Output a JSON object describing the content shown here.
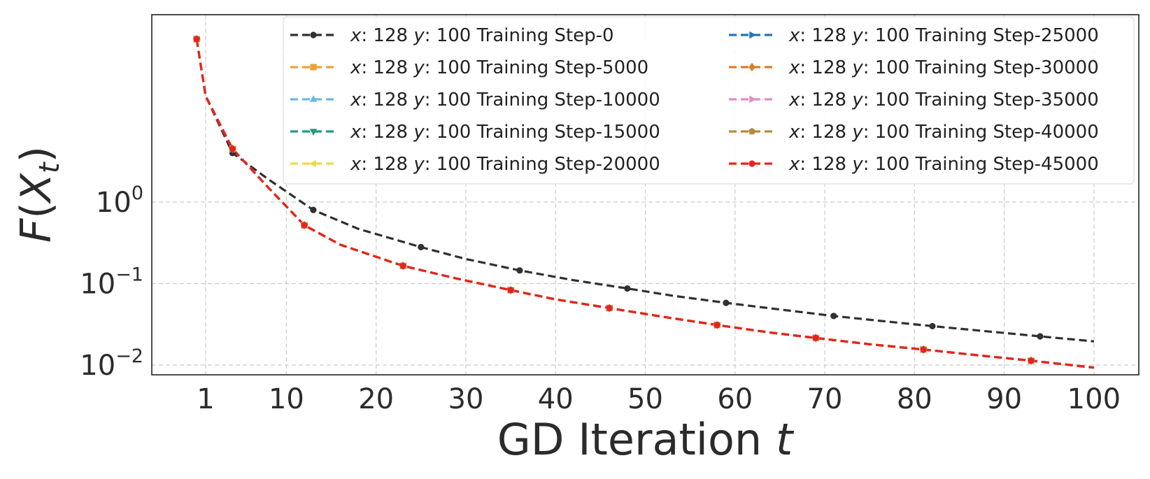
{
  "chart_data": {
    "type": "line",
    "title": "",
    "xlabel": "GD Iteration t",
    "xlabel_text": "GD Iteration ",
    "xlabel_var": "t",
    "ylabel": "F(X_t)",
    "y_scale": "log",
    "xlim": [
      -5,
      105
    ],
    "ylim_log10": [
      -2.12,
      2.3
    ],
    "x_ticks": [
      1,
      10,
      20,
      30,
      40,
      50,
      60,
      70,
      80,
      90,
      100
    ],
    "y_ticks": [
      {
        "exp": -2,
        "base": "10",
        "sup": "−2"
      },
      {
        "exp": -1,
        "base": "10",
        "sup": "−1"
      },
      {
        "exp": 0,
        "base": "10",
        "sup": "0"
      }
    ],
    "grid": true,
    "legend_position": "top-right",
    "legend_columns": 2,
    "legend_label_parts": {
      "x": "x",
      "x_val": ": 128 ",
      "y": "y",
      "y_val": ": 100 Training Step-"
    },
    "series": [
      {
        "name": "x: 128 y: 100 Training Step-0",
        "step": "0",
        "color": "#303030",
        "marker": "circle",
        "curve": "initial"
      },
      {
        "name": "x: 128 y: 100 Training Step-5000",
        "step": "5000",
        "color": "#E8A33C",
        "marker": "square",
        "curve": "trained"
      },
      {
        "name": "x: 128 y: 100 Training Step-10000",
        "step": "10000",
        "color": "#6CB8E6",
        "marker": "triangle-up",
        "curve": "trained"
      },
      {
        "name": "x: 128 y: 100 Training Step-15000",
        "step": "15000",
        "color": "#1F9E79",
        "marker": "triangle-down",
        "curve": "trained"
      },
      {
        "name": "x: 128 y: 100 Training Step-20000",
        "step": "20000",
        "color": "#EDD94C",
        "marker": "triangle-left",
        "curve": "trained"
      },
      {
        "name": "x: 128 y: 100 Training Step-25000",
        "step": "25000",
        "color": "#1F77B4",
        "marker": "triangle-right",
        "curve": "trained"
      },
      {
        "name": "x: 128 y: 100 Training Step-30000",
        "step": "30000",
        "color": "#E07B2A",
        "marker": "diamond",
        "curve": "trained"
      },
      {
        "name": "x: 128 y: 100 Training Step-35000",
        "step": "35000",
        "color": "#E28CC4",
        "marker": "triangle-right",
        "curve": "trained"
      },
      {
        "name": "x: 128 y: 100 Training Step-40000",
        "step": "40000",
        "color": "#B88A3E",
        "marker": "pentagon",
        "curve": "trained"
      },
      {
        "name": "x: 128 y: 100 Training Step-45000",
        "step": "45000",
        "color": "#E8231B",
        "marker": "circle",
        "curve": "trained"
      }
    ],
    "curves": {
      "initial": {
        "x": [
          0,
          1,
          4,
          8,
          13,
          18,
          25,
          30,
          36,
          42,
          48,
          53,
          59,
          65,
          71,
          76,
          82,
          88,
          94,
          100
        ],
        "y": [
          100,
          20,
          4.0,
          1.9,
          0.8,
          0.47,
          0.28,
          0.2,
          0.145,
          0.11,
          0.087,
          0.071,
          0.058,
          0.048,
          0.04,
          0.035,
          0.03,
          0.026,
          0.0225,
          0.0195
        ]
      },
      "trained": {
        "x": [
          0,
          1,
          4,
          8,
          12,
          16,
          23,
          29,
          35,
          40,
          46,
          52,
          58,
          64,
          69,
          75,
          81,
          87,
          93,
          100
        ],
        "y": [
          100,
          20,
          4.5,
          1.5,
          0.52,
          0.3,
          0.165,
          0.115,
          0.083,
          0.064,
          0.05,
          0.039,
          0.031,
          0.025,
          0.0215,
          0.018,
          0.0155,
          0.0132,
          0.0113,
          0.0093
        ]
      }
    },
    "marker_x": {
      "initial": [
        0,
        4,
        13,
        25,
        36,
        48,
        59,
        71,
        82,
        94
      ],
      "trained": [
        0,
        4,
        12,
        23,
        35,
        46,
        58,
        69,
        81,
        93
      ]
    }
  }
}
